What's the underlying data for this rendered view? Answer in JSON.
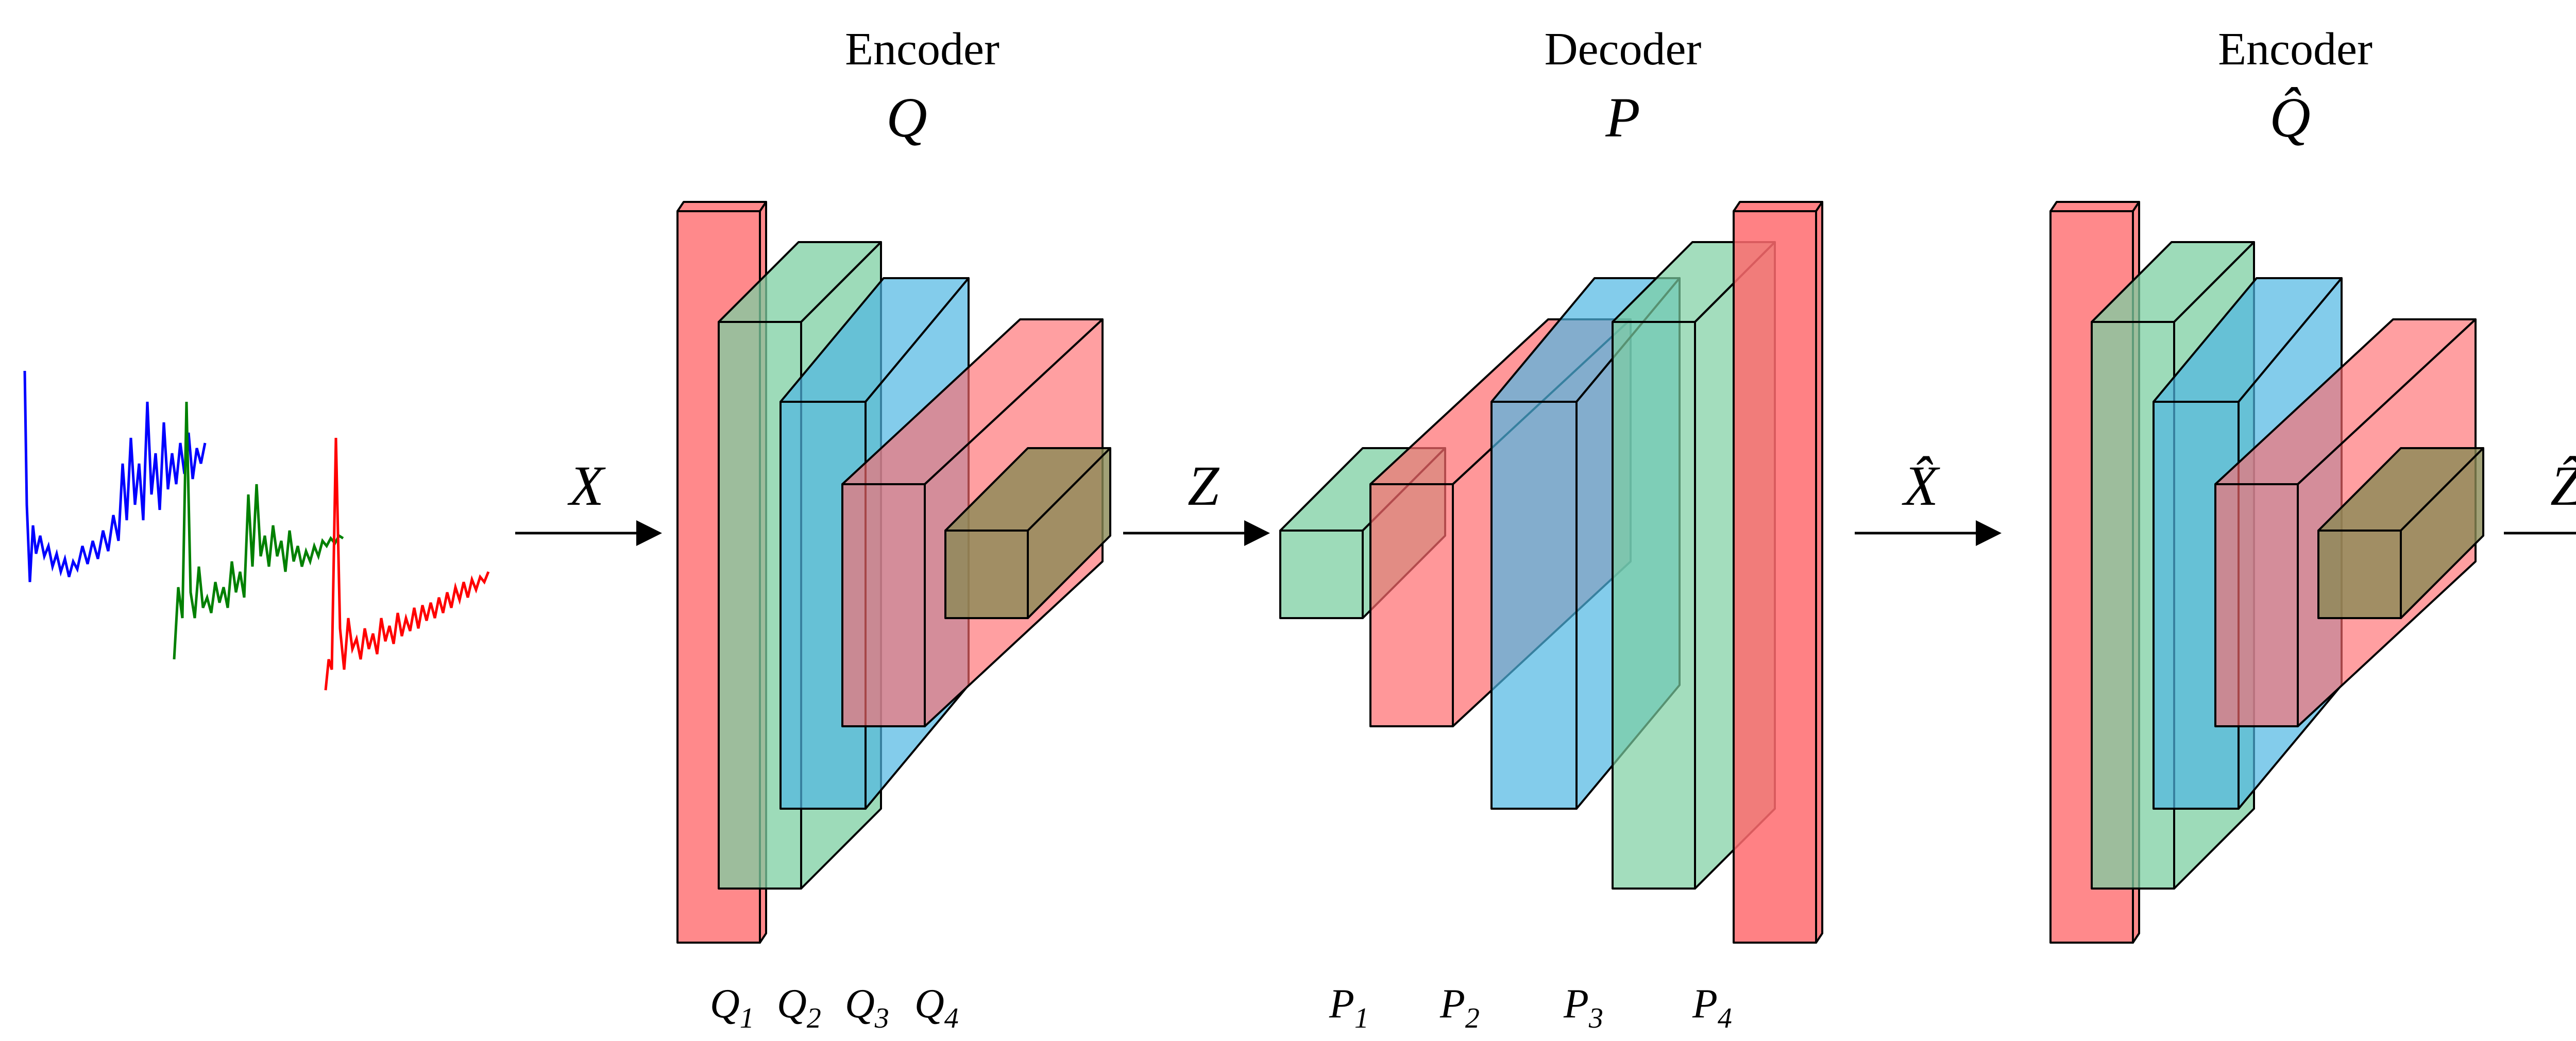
{
  "titles": {
    "encoder_left": "Encoder",
    "encoder_left_symbol": "Q",
    "decoder": "Decoder",
    "decoder_symbol": "P",
    "encoder_right": "Encoder",
    "encoder_right_symbol": "Q̂"
  },
  "arrows": {
    "x": "X",
    "z": "Z",
    "x_hat": "X̂",
    "z_hat": "Ẑ"
  },
  "layer_labels": {
    "q": [
      {
        "base": "Q",
        "sub": "1"
      },
      {
        "base": "Q",
        "sub": "2"
      },
      {
        "base": "Q",
        "sub": "3"
      },
      {
        "base": "Q",
        "sub": "4"
      }
    ],
    "p": [
      {
        "base": "P",
        "sub": "1"
      },
      {
        "base": "P",
        "sub": "2"
      },
      {
        "base": "P",
        "sub": "3"
      },
      {
        "base": "P",
        "sub": "4"
      }
    ]
  },
  "colors": {
    "red": "#ff6b6e",
    "green": "#7ccfa1",
    "blue": "#4fb6e3",
    "olive": "#8a8a55",
    "signal_blue": "#0000ff",
    "signal_green": "#008000",
    "signal_red": "#ff0000"
  }
}
